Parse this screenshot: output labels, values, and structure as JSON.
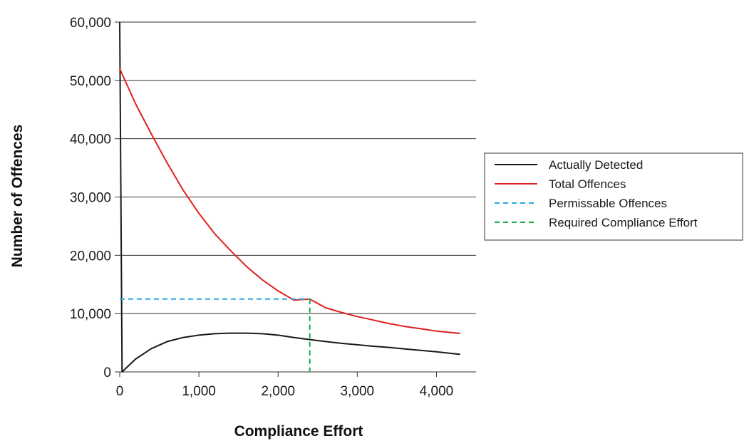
{
  "chart_data": {
    "type": "line",
    "title": "",
    "xlabel": "Compliance Effort",
    "ylabel": "Number of Offences",
    "xlim": [
      0,
      4500
    ],
    "ylim": [
      0,
      60000
    ],
    "x_ticks": [
      0,
      1000,
      2000,
      3000,
      4000
    ],
    "x_tick_labels": [
      "0",
      "1,000",
      "2,000",
      "3,000",
      "4,000"
    ],
    "y_ticks": [
      0,
      10000,
      20000,
      30000,
      40000,
      50000,
      60000
    ],
    "y_tick_labels": [
      "0",
      "10,000",
      "20,000",
      "30,000",
      "40,000",
      "50,000",
      "60,000"
    ],
    "grid": "horizontal",
    "legend_position": "right",
    "series": [
      {
        "name": "Actually Detected",
        "color": "#1a1a1a",
        "style": "solid",
        "points": [
          [
            0,
            60000
          ],
          [
            30,
            0
          ],
          [
            200,
            2200
          ],
          [
            400,
            4000
          ],
          [
            600,
            5200
          ],
          [
            800,
            5900
          ],
          [
            1000,
            6300
          ],
          [
            1200,
            6550
          ],
          [
            1400,
            6650
          ],
          [
            1600,
            6650
          ],
          [
            1800,
            6550
          ],
          [
            2000,
            6300
          ],
          [
            2200,
            5900
          ],
          [
            2400,
            5550
          ],
          [
            2600,
            5200
          ],
          [
            2800,
            4900
          ],
          [
            3000,
            4650
          ],
          [
            3200,
            4400
          ],
          [
            3400,
            4200
          ],
          [
            3600,
            3950
          ],
          [
            3800,
            3700
          ],
          [
            4000,
            3450
          ],
          [
            4300,
            3000
          ]
        ]
      },
      {
        "name": "Total Offences",
        "color": "#e02020",
        "style": "solid",
        "points": [
          [
            0,
            52000
          ],
          [
            100,
            49000
          ],
          [
            200,
            46000
          ],
          [
            400,
            40800
          ],
          [
            600,
            35800
          ],
          [
            800,
            31200
          ],
          [
            1000,
            27200
          ],
          [
            1200,
            23700
          ],
          [
            1400,
            20800
          ],
          [
            1600,
            18100
          ],
          [
            1800,
            15800
          ],
          [
            2000,
            13900
          ],
          [
            2200,
            12300
          ],
          [
            2400,
            12500
          ],
          [
            2600,
            11000
          ],
          [
            2800,
            10200
          ],
          [
            3000,
            9500
          ],
          [
            3200,
            8900
          ],
          [
            3400,
            8300
          ],
          [
            3600,
            7800
          ],
          [
            3800,
            7400
          ],
          [
            4000,
            7000
          ],
          [
            4300,
            6600
          ]
        ]
      },
      {
        "name": "Permissable Offences",
        "color": "#29a9e0",
        "style": "dashed",
        "points": [
          [
            0,
            12500
          ],
          [
            2400,
            12500
          ]
        ]
      },
      {
        "name": "Required Compliance Effort",
        "color": "#1aa64a",
        "style": "dashed",
        "points": [
          [
            2400,
            12500
          ],
          [
            2400,
            0
          ]
        ]
      }
    ],
    "legend": [
      {
        "label": "Actually Detected",
        "color": "#1a1a1a",
        "style": "solid"
      },
      {
        "label": "Total Offences",
        "color": "#e02020",
        "style": "solid"
      },
      {
        "label": "Permissable Offences",
        "color": "#29a9e0",
        "style": "dashed"
      },
      {
        "label": "Required Compliance Effort",
        "color": "#1aa64a",
        "style": "dashed"
      }
    ]
  }
}
